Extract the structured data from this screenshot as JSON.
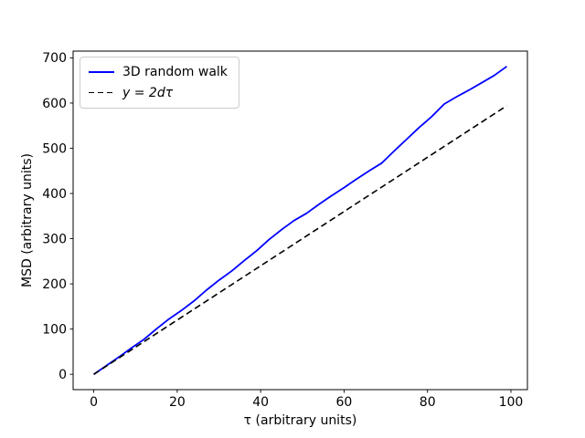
{
  "chart_data": {
    "type": "line",
    "title": "",
    "xlabel": "τ (arbitrary units)",
    "ylabel": "MSD (arbitrary units)",
    "xlim": [
      -4.95,
      103.95
    ],
    "ylim": [
      -34,
      715
    ],
    "xticks": [
      0,
      20,
      40,
      60,
      80,
      100
    ],
    "yticks": [
      0,
      100,
      200,
      300,
      400,
      500,
      600,
      700
    ],
    "grid": false,
    "legend_position": "upper-left",
    "background_color": "#ffffff",
    "legend_border_color": "#cccccc",
    "series": [
      {
        "name": "3D random walk",
        "color": "#0000ff",
        "style": "solid",
        "x": [
          0,
          3,
          6,
          9,
          12,
          15,
          18,
          21,
          24,
          27,
          30,
          33,
          36,
          39,
          42,
          45,
          48,
          51,
          54,
          57,
          60,
          63,
          66,
          69,
          72,
          75,
          78,
          81,
          84,
          87,
          90,
          93,
          96,
          99
        ],
        "y": [
          0,
          19,
          38,
          58,
          77,
          100,
          122,
          141,
          162,
          186,
          208,
          228,
          251,
          273,
          298,
          320,
          340,
          356,
          376,
          395,
          413,
          432,
          450,
          467,
          494,
          520,
          546,
          570,
          598,
          614,
          629,
          645,
          661,
          681
        ]
      },
      {
        "name": "y = 2dτ",
        "color": "#000000",
        "style": "dashed",
        "x": [
          0,
          99
        ],
        "y": [
          0,
          594
        ]
      }
    ]
  }
}
